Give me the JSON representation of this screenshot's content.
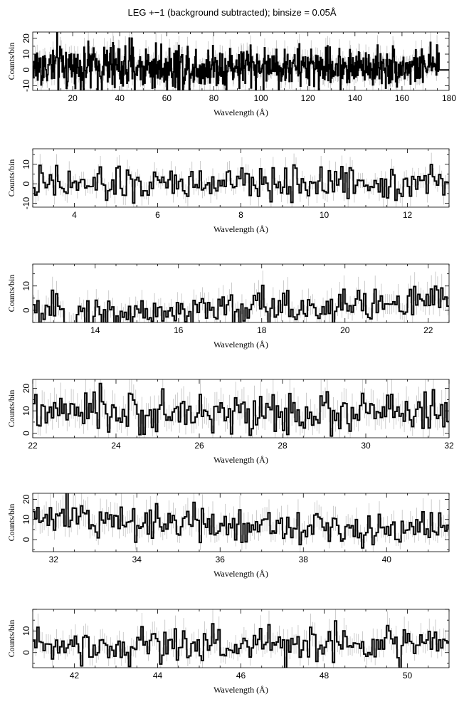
{
  "title": "LEG +−1 (background subtracted); binsize = 0.05Å",
  "chart_data": [
    {
      "type": "line",
      "xlabel": "Wavelength (Å)",
      "ylabel": "Counts/bin",
      "xlim": [
        3,
        180
      ],
      "ylim": [
        -13,
        24
      ],
      "xticks": [
        20,
        40,
        60,
        80,
        100,
        120,
        140,
        160,
        180
      ],
      "yticks": [
        -10,
        0,
        10,
        20
      ],
      "model": {
        "center": 2,
        "slope": 0,
        "noise": 8.5,
        "step": 0.25,
        "data_end": 175.5,
        "tail_value": 0
      }
    },
    {
      "type": "line",
      "xlabel": "Wavelength (Å)",
      "ylabel": "Counts/bin",
      "xlim": [
        3,
        13
      ],
      "ylim": [
        -12,
        18
      ],
      "xticks": [
        4,
        6,
        8,
        10,
        12
      ],
      "yticks": [
        -10,
        0,
        10
      ],
      "model": {
        "center": 0,
        "slope": 0.2,
        "noise": 4.5,
        "step": 0.05
      }
    },
    {
      "type": "line",
      "xlabel": "Wavelength (Å)",
      "ylabel": "Counts/bin",
      "xlim": [
        12.5,
        22.5
      ],
      "ylim": [
        -5,
        19
      ],
      "xticks": [
        14,
        16,
        18,
        20,
        22
      ],
      "yticks": [
        0,
        10
      ],
      "model": {
        "center": 0.5,
        "slope": 0.6,
        "noise": 4,
        "step": 0.05
      }
    },
    {
      "type": "line",
      "xlabel": "Wavelength (Å)",
      "ylabel": "Counts/bin",
      "xlim": [
        22,
        32
      ],
      "ylim": [
        -2,
        24
      ],
      "xticks": [
        22,
        24,
        26,
        28,
        30,
        32
      ],
      "yticks": [
        0,
        10,
        20
      ],
      "model": {
        "center": 9,
        "slope": 0,
        "noise": 4.5,
        "step": 0.05
      }
    },
    {
      "type": "line",
      "xlabel": "Wavelength (Å)",
      "ylabel": "Counts/bin",
      "xlim": [
        31.5,
        41.5
      ],
      "ylim": [
        -6,
        23
      ],
      "xticks": [
        32,
        34,
        36,
        38,
        40
      ],
      "yticks": [
        0,
        10,
        20
      ],
      "model": {
        "center": 8,
        "slope": -0.6,
        "noise": 4.5,
        "step": 0.05
      }
    },
    {
      "type": "line",
      "xlabel": "Wavelength (Å)",
      "ylabel": "Counts/bin",
      "xlim": [
        41,
        51
      ],
      "ylim": [
        -7,
        20
      ],
      "xticks": [
        42,
        44,
        46,
        48,
        50
      ],
      "yticks": [
        0,
        10
      ],
      "model": {
        "center": 4,
        "slope": 0,
        "noise": 4.5,
        "step": 0.05
      }
    }
  ]
}
